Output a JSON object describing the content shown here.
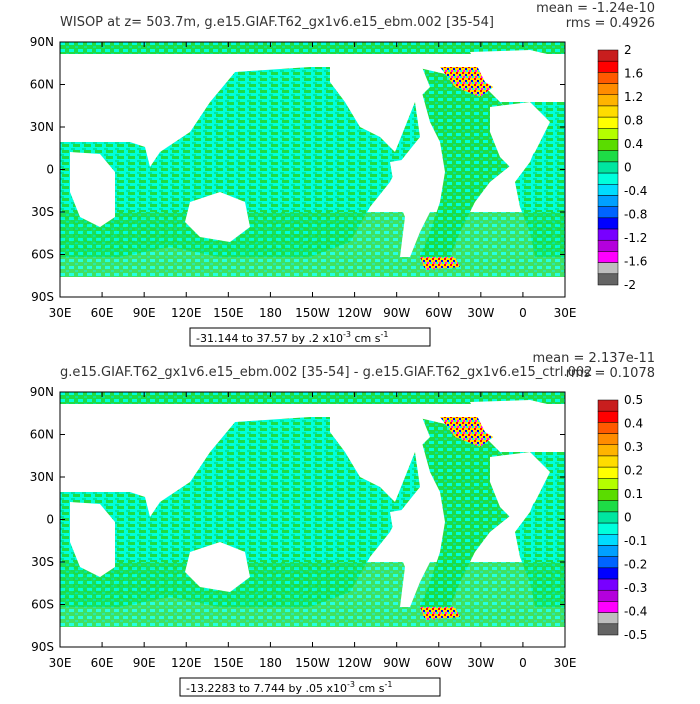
{
  "chart_data": [
    {
      "type": "heatmap",
      "title": "WISOP at z= 503.7m, g.e15.GIAF.T62_gx1v6.e15_ebm.002 [35-54]",
      "stats": {
        "mean": "mean = -1.24e-10",
        "rms": "rms = 0.4926"
      },
      "range_label": {
        "text": "-31.144 to 37.57 by .2 x10",
        "exp": "-3",
        "unit": " cm s",
        "unit_exp": "-1"
      },
      "x_ticks": [
        "30E",
        "60E",
        "90E",
        "120E",
        "150E",
        "180",
        "150W",
        "120W",
        "90W",
        "60W",
        "30W",
        "0",
        "30E"
      ],
      "y_ticks": [
        "90N",
        "60N",
        "30N",
        "0",
        "30S",
        "60S",
        "90S"
      ],
      "colorbar": {
        "labels": [
          "2",
          "1.6",
          "1.2",
          "0.8",
          "0.4",
          "0",
          "-0.4",
          "-0.8",
          "-1.2",
          "-1.6",
          "-2"
        ],
        "colors": [
          "#c81e1e",
          "#ff0000",
          "#ff5a00",
          "#ff8c00",
          "#ffb400",
          "#ffdc00",
          "#ffff00",
          "#b4ff00",
          "#5adc00",
          "#1edc46",
          "#00e6a0",
          "#00ffdc",
          "#00dcff",
          "#00a0ff",
          "#0064ff",
          "#0000ff",
          "#7800ff",
          "#b400dc",
          "#ff00ff",
          "#bebebe",
          "#646464"
        ]
      }
    },
    {
      "type": "heatmap",
      "title": "g.e15.GIAF.T62_gx1v6.e15_ebm.002 [35-54] - g.e15.GIAF.T62_gx1v6.e15_ctrl.002",
      "stats": {
        "mean": "mean = 2.137e-11",
        "rms": "rms = 0.1078"
      },
      "range_label": {
        "text": "-13.2283 to 7.744 by .05 x10",
        "exp": "-3",
        "unit": " cm s",
        "unit_exp": "-1"
      },
      "x_ticks": [
        "30E",
        "60E",
        "90E",
        "120E",
        "150E",
        "180",
        "150W",
        "120W",
        "90W",
        "60W",
        "30W",
        "0",
        "30E"
      ],
      "y_ticks": [
        "90N",
        "60N",
        "30N",
        "0",
        "30S",
        "60S",
        "90S"
      ],
      "colorbar": {
        "labels": [
          "0.5",
          "0.4",
          "0.3",
          "0.2",
          "0.1",
          "0",
          "-0.1",
          "-0.2",
          "-0.3",
          "-0.4",
          "-0.5"
        ],
        "colors": [
          "#c81e1e",
          "#ff0000",
          "#ff5a00",
          "#ff8c00",
          "#ffb400",
          "#ffdc00",
          "#ffff00",
          "#b4ff00",
          "#5adc00",
          "#1edc46",
          "#00e6a0",
          "#00ffdc",
          "#00dcff",
          "#00a0ff",
          "#0064ff",
          "#0000ff",
          "#7800ff",
          "#b400dc",
          "#ff00ff",
          "#bebebe",
          "#646464"
        ]
      }
    }
  ]
}
